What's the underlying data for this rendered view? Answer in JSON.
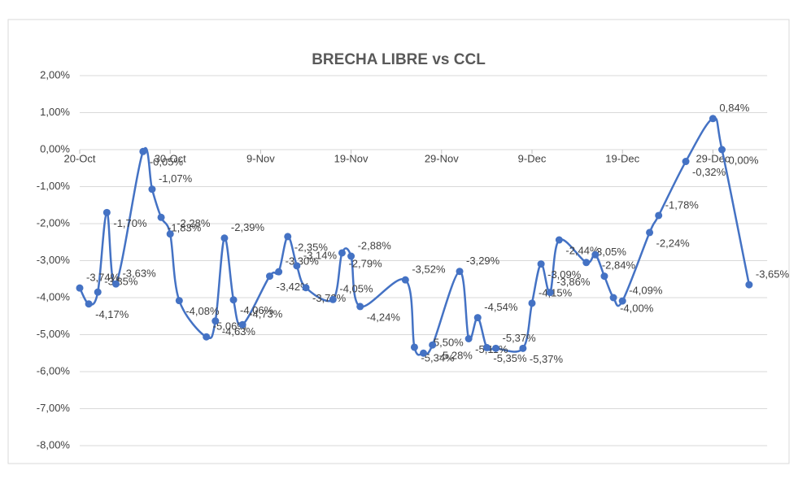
{
  "chart_data": {
    "type": "line",
    "title": "BRECHA LIBRE vs CCL",
    "x": [
      "20-Oct",
      "21-Oct",
      "22-Oct",
      "23-Oct",
      "24-Oct",
      "27-Oct",
      "28-Oct",
      "29-Oct",
      "30-Oct",
      "31-Oct",
      "3-Nov",
      "4-Nov",
      "5-Nov",
      "6-Nov",
      "7-Nov",
      "10-Nov",
      "11-Nov",
      "12-Nov",
      "13-Nov",
      "14-Nov",
      "17-Nov",
      "18-Nov",
      "19-Nov",
      "20-Nov",
      "25-Nov",
      "26-Nov",
      "27-Nov",
      "28-Nov",
      "1-Dec",
      "2-Dec",
      "3-Dec",
      "4-Dec",
      "5-Dec",
      "8-Dec",
      "9-Dec",
      "10-Dec",
      "11-Dec",
      "12-Dec",
      "15-Dec",
      "16-Dec",
      "17-Dec",
      "18-Dec",
      "19-Dec",
      "22-Dec",
      "23-Dec",
      "26-Dec",
      "29-Dec",
      "30-Dec",
      "2-Jan"
    ],
    "series": [
      {
        "name": "Brecha",
        "color": "#4472c4",
        "values": [
          -3.74,
          -4.17,
          -3.85,
          -1.7,
          -3.63,
          -0.05,
          -1.07,
          -1.83,
          -2.28,
          -4.08,
          -5.06,
          -4.63,
          -2.39,
          -4.06,
          -4.73,
          -3.42,
          -3.3,
          -2.35,
          -3.14,
          -3.73,
          -4.05,
          -2.79,
          -2.88,
          -4.24,
          -3.52,
          -5.34,
          -5.5,
          -5.28,
          -3.29,
          -5.11,
          -4.54,
          -5.35,
          -5.37,
          -5.37,
          -4.15,
          -3.09,
          -3.86,
          -2.44,
          -3.05,
          -2.84,
          -3.42,
          -4.0,
          -4.09,
          -2.24,
          -1.78,
          -0.32,
          0.84,
          0.0,
          -3.65
        ],
        "value_labels": [
          "-3,74%",
          "-4,17%",
          "-3,85%",
          "-1,70%",
          "-3,63%",
          "-0,05%",
          "-1,07%",
          "-1,83%",
          "-2,28%",
          "-4,08%",
          "-5,06%",
          "-4,63%",
          "-2,39%",
          "-4,06%",
          "-4,73%",
          "-3,42%",
          "-3,30%",
          "-2,35%",
          "-3,14%",
          "-3,73%",
          "-4,05%",
          "-2,79%",
          "-2,88%",
          "-4,24%",
          "-3,52%",
          "-5,34%",
          "-5,50%",
          "-5,28%",
          "-3,29%",
          "-5,11%",
          "-4,54%",
          "-5,35%",
          "-5,37%",
          "-5,37%",
          "-4,15%",
          "-3,09%",
          "-3,86%",
          "-2,44%",
          "-3,05%",
          "-2,84%",
          null,
          "-4,00%",
          "-4,09%",
          "-2,24%",
          "-1,78%",
          "-0,32%",
          "0,84%",
          "0,00%",
          "-3,65%"
        ]
      }
    ],
    "xlim": [
      "20-Oct",
      "4-Jan"
    ],
    "xticks": [
      "20-Oct",
      "30-Oct",
      "9-Nov",
      "19-Nov",
      "29-Nov",
      "9-Dec",
      "19-Dec",
      "29-Dec"
    ],
    "ylim": [
      -8,
      2
    ],
    "yticks": [
      {
        "value": 2,
        "label": "2,00%"
      },
      {
        "value": 1,
        "label": "1,00%"
      },
      {
        "value": 0,
        "label": "0,00%"
      },
      {
        "value": -1,
        "label": "-1,00%"
      },
      {
        "value": -2,
        "label": "-2,00%"
      },
      {
        "value": -3,
        "label": "-3,00%"
      },
      {
        "value": -4,
        "label": "-4,00%"
      },
      {
        "value": -5,
        "label": "-5,00%"
      },
      {
        "value": -6,
        "label": "-6,00%"
      },
      {
        "value": -7,
        "label": "-7,00%"
      },
      {
        "value": -8,
        "label": "-8,00%"
      }
    ],
    "grid": true
  }
}
